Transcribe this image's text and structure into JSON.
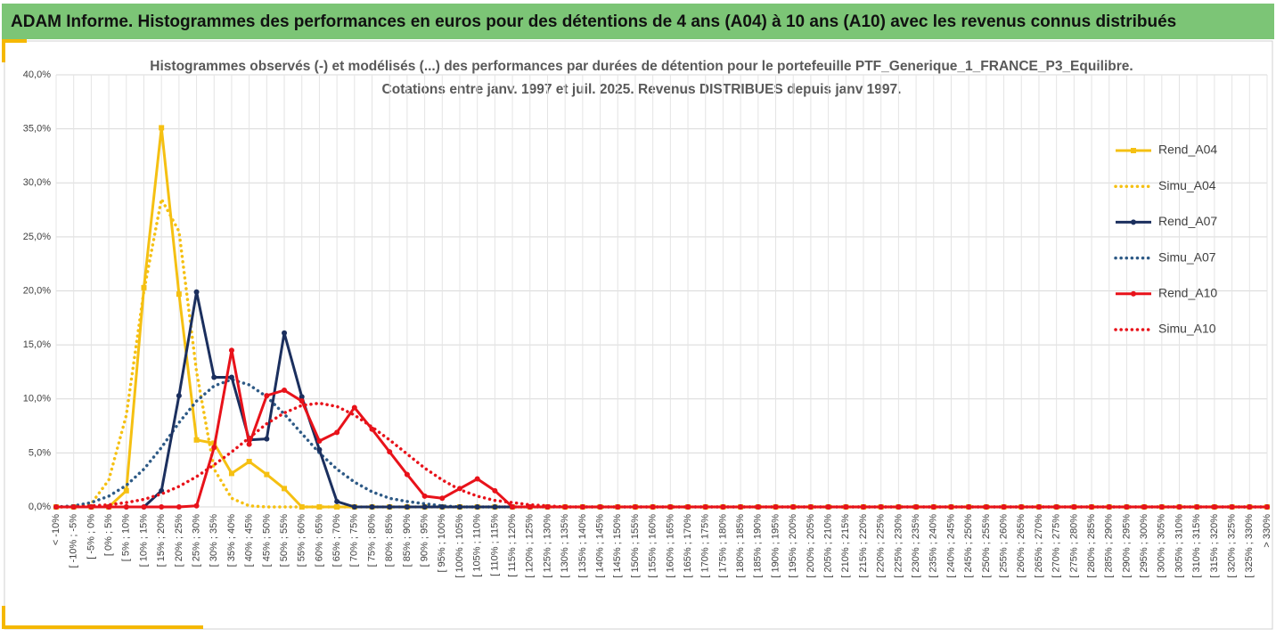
{
  "header": "ADAM Informe. Histogrammes des performances en euros pour des détentions de 4 ans (A04) à 10 ans (A10) avec les revenus connus distribués",
  "chart_data": {
    "type": "line",
    "title": "Histogrammes observés (-) et modélisés (...) des performances par durées de détention pour le portefeuille PTF_Generique_1_FRANCE_P3_Equilibre.",
    "subtitle": "Cotations entre janv. 1997 et juil. 2025. Revenus DISTRIBUES depuis janv 1997.",
    "categories": [
      "< -10%",
      "[ -10% ; -5%",
      "[ -5% ; 0%",
      "[ 0% ; 5%",
      "[ 5% ; 10%",
      "[ 10% ; 15%",
      "[ 15% ; 20%",
      "[ 20% ; 25%",
      "[ 25% ; 30%",
      "[ 30% ; 35%",
      "[ 35% ; 40%",
      "[ 40% ; 45%",
      "[ 45% ; 50%",
      "[ 50% ; 55%",
      "[ 55% ; 60%",
      "[ 60% ; 65%",
      "[ 65% ; 70%",
      "[ 70% ; 75%",
      "[ 75% ; 80%",
      "[ 80% ; 85%",
      "[ 85% ; 90%",
      "[ 90% ; 95%",
      "[ 95% ; 100%",
      "[ 100% ; 105%",
      "[ 105% ; 110%",
      "[ 110% ; 115%",
      "[ 115% ; 120%",
      "[ 120% ; 125%",
      "[ 125% ; 130%",
      "[ 130% ; 135%",
      "[ 135% ; 140%",
      "[ 140% ; 145%",
      "[ 145% ; 150%",
      "[ 150% ; 155%",
      "[ 155% ; 160%",
      "[ 160% ; 165%",
      "[ 165% ; 170%",
      "[ 170% ; 175%",
      "[ 175% ; 180%",
      "[ 180% ; 185%",
      "[ 185% ; 190%",
      "[ 190% ; 195%",
      "[ 195% ; 200%",
      "[ 200% ; 205%",
      "[ 205% ; 210%",
      "[ 210% ; 215%",
      "[ 215% ; 220%",
      "[ 220% ; 225%",
      "[ 225% ; 230%",
      "[ 230% ; 235%",
      "[ 235% ; 240%",
      "[ 240% ; 245%",
      "[ 245% ; 250%",
      "[ 250% ; 255%",
      "[ 255% ; 260%",
      "[ 260% ; 265%",
      "[ 265% ; 270%",
      "[ 270% ; 275%",
      "[ 275% ; 280%",
      "[ 280% ; 285%",
      "[ 285% ; 290%",
      "[ 290% ; 295%",
      "[ 295% ; 300%",
      "[ 300% ; 305%",
      "[ 305% ; 310%",
      "[ 310% ; 315%",
      "[ 315% ; 320%",
      "[ 320% ; 325%",
      "[ 325% ; 330%",
      "> 330%"
    ],
    "series": [
      {
        "name": "Rend_A04",
        "color": "#f5c012",
        "style": "solid",
        "marker": "square",
        "values": [
          0,
          0,
          0,
          0,
          1.5,
          20.3,
          35.1,
          19.7,
          6.2,
          5.9,
          3.1,
          4.2,
          3.0,
          1.7,
          0,
          0,
          0,
          0,
          0,
          0,
          0,
          0,
          0,
          0,
          0,
          0,
          0,
          0,
          0,
          0,
          0,
          0,
          0,
          0,
          0,
          0,
          0,
          0,
          0,
          0,
          0,
          0,
          0,
          0,
          0,
          0,
          0,
          0,
          0,
          0,
          0,
          0,
          0,
          0,
          0,
          0,
          0,
          0,
          0,
          0,
          0,
          0,
          0,
          0,
          0,
          0,
          0,
          0,
          0,
          0
        ]
      },
      {
        "name": "Simu_A04",
        "color": "#f5c012",
        "style": "dotted",
        "marker": "none",
        "values": [
          0,
          0,
          0.3,
          2.5,
          8.5,
          20,
          28.5,
          25.5,
          12.5,
          3.5,
          0.8,
          0.1,
          0,
          0,
          0,
          0,
          0,
          0,
          0,
          0,
          0,
          0,
          0,
          0,
          0,
          0,
          0,
          0,
          0,
          0,
          0,
          0,
          0,
          0,
          0,
          0,
          0,
          0,
          0,
          0,
          0,
          0,
          0,
          0,
          0,
          0,
          0,
          0,
          0,
          0,
          0,
          0,
          0,
          0,
          0,
          0,
          0,
          0,
          0,
          0,
          0,
          0,
          0,
          0,
          0,
          0,
          0,
          0,
          0,
          0
        ]
      },
      {
        "name": "Rend_A07",
        "color": "#1b2f5e",
        "style": "solid",
        "marker": "circle",
        "values": [
          0,
          0,
          0,
          0,
          0,
          0,
          1.5,
          10.3,
          19.9,
          12.0,
          12.0,
          6.2,
          6.3,
          16.1,
          10.2,
          5.3,
          0.5,
          0,
          0,
          0,
          0,
          0,
          0,
          0,
          0,
          0,
          0,
          0,
          0,
          0,
          0,
          0,
          0,
          0,
          0,
          0,
          0,
          0,
          0,
          0,
          0,
          0,
          0,
          0,
          0,
          0,
          0,
          0,
          0,
          0,
          0,
          0,
          0,
          0,
          0,
          0,
          0,
          0,
          0,
          0,
          0,
          0,
          0,
          0,
          0,
          0,
          0,
          0,
          0,
          0
        ]
      },
      {
        "name": "Simu_A07",
        "color": "#2e5a86",
        "style": "dotted",
        "marker": "none",
        "values": [
          0,
          0.1,
          0.4,
          1.0,
          2.0,
          3.5,
          5.5,
          7.8,
          9.8,
          11.2,
          11.8,
          11.3,
          10.2,
          8.6,
          6.8,
          5.0,
          3.5,
          2.3,
          1.4,
          0.8,
          0.5,
          0.3,
          0.1,
          0,
          0,
          0,
          0,
          0,
          0,
          0,
          0,
          0,
          0,
          0,
          0,
          0,
          0,
          0,
          0,
          0,
          0,
          0,
          0,
          0,
          0,
          0,
          0,
          0,
          0,
          0,
          0,
          0,
          0,
          0,
          0,
          0,
          0,
          0,
          0,
          0,
          0,
          0,
          0,
          0,
          0,
          0,
          0,
          0,
          0,
          0
        ]
      },
      {
        "name": "Rend_A10",
        "color": "#e8121a",
        "style": "solid",
        "marker": "circle",
        "values": [
          0,
          0,
          0,
          0,
          0,
          0,
          0,
          0,
          0.1,
          5.5,
          14.5,
          5.8,
          10.3,
          10.8,
          9.8,
          6.1,
          6.9,
          9.2,
          7.2,
          5.1,
          3.0,
          1.0,
          0.8,
          1.7,
          2.6,
          1.5,
          0,
          0,
          0,
          0,
          0,
          0,
          0,
          0,
          0,
          0,
          0,
          0,
          0,
          0,
          0,
          0,
          0,
          0,
          0,
          0,
          0,
          0,
          0,
          0,
          0,
          0,
          0,
          0,
          0,
          0,
          0,
          0,
          0,
          0,
          0,
          0,
          0,
          0,
          0,
          0,
          0,
          0,
          0,
          0
        ]
      },
      {
        "name": "Simu_A10",
        "color": "#e8121a",
        "style": "dotted",
        "marker": "none",
        "values": [
          0,
          0,
          0.1,
          0.2,
          0.4,
          0.7,
          1.2,
          1.9,
          2.8,
          3.9,
          5.1,
          6.4,
          7.7,
          8.7,
          9.4,
          9.6,
          9.3,
          8.5,
          7.4,
          6.2,
          4.9,
          3.6,
          2.5,
          1.6,
          1.0,
          0.6,
          0.4,
          0.2,
          0.1,
          0,
          0,
          0,
          0,
          0,
          0,
          0,
          0,
          0,
          0,
          0,
          0,
          0,
          0,
          0,
          0,
          0,
          0,
          0,
          0,
          0,
          0,
          0,
          0,
          0,
          0,
          0,
          0,
          0,
          0,
          0,
          0,
          0,
          0,
          0,
          0,
          0,
          0,
          0,
          0,
          0
        ]
      }
    ],
    "ylim": [
      0,
      40
    ],
    "yticks": [
      {
        "value": 0,
        "label": "0,0%"
      },
      {
        "value": 5,
        "label": "5,0%"
      },
      {
        "value": 10,
        "label": "10,0%"
      },
      {
        "value": 15,
        "label": "15,0%"
      },
      {
        "value": 20,
        "label": "20,0%"
      },
      {
        "value": 25,
        "label": "25,0%"
      },
      {
        "value": 30,
        "label": "30,0%"
      },
      {
        "value": 35,
        "label": "35,0%"
      },
      {
        "value": 40,
        "label": "40,0%"
      }
    ],
    "grid": true,
    "legend": "right"
  }
}
